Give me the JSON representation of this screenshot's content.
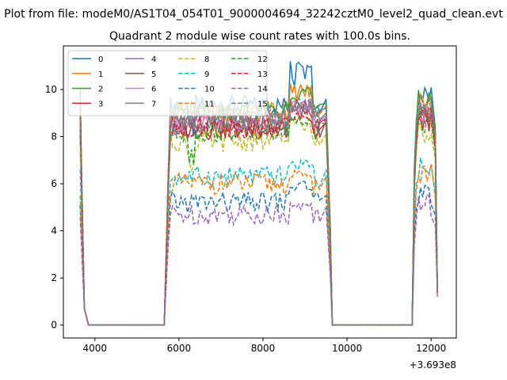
{
  "chart_data": {
    "type": "line",
    "suptitle": "Plot from file: modeM0/AS1T04_054T01_9000004694_32242cztM0_level2_quad_clean.evt",
    "title": "Quadrant 2 module wise count rates with 100.0s bins.",
    "xlabel": "",
    "ylabel": "",
    "x_offset_label": "+3.693e8",
    "xlim": [
      3250,
      12600
    ],
    "ylim": [
      -0.55,
      11.85
    ],
    "x_ticks": [
      4000,
      6000,
      8000,
      10000,
      12000
    ],
    "x_tick_labels": [
      "4000",
      "6000",
      "8000",
      "10000",
      "12000"
    ],
    "y_ticks": [
      0,
      2,
      4,
      6,
      8,
      10
    ],
    "y_tick_labels": [
      "0",
      "2",
      "4",
      "6",
      "8",
      "10"
    ],
    "grid": false,
    "legend_position": "top-left",
    "legend_columns": 4,
    "segments": [
      {
        "start": 3650,
        "end": 3850
      },
      {
        "start": 5650,
        "end": 9650
      },
      {
        "start": 11550,
        "end": 12150
      }
    ],
    "series": [
      {
        "name": "0",
        "color": "#1f77b4",
        "dashed": false,
        "level": 9.3,
        "first": 8.0,
        "peak": 11.2
      },
      {
        "name": "1",
        "color": "#ff7f0e",
        "dashed": false,
        "level": 9.0,
        "first": 8.3,
        "peak": 10.3
      },
      {
        "name": "2",
        "color": "#2ca02c",
        "dashed": false,
        "level": 9.1,
        "first": 10.1,
        "peak": 10.1
      },
      {
        "name": "3",
        "color": "#d62728",
        "dashed": false,
        "level": 8.3,
        "first": 9.0,
        "peak": 9.3
      },
      {
        "name": "4",
        "color": "#9467bd",
        "dashed": false,
        "level": 8.5,
        "first": 8.2,
        "peak": 9.6
      },
      {
        "name": "5",
        "color": "#8c564b",
        "dashed": false,
        "level": 8.4,
        "first": 8.4,
        "peak": 9.6
      },
      {
        "name": "6",
        "color": "#e377c2",
        "dashed": false,
        "level": 8.6,
        "first": 8.5,
        "peak": 9.6
      },
      {
        "name": "7",
        "color": "#7f7f7f",
        "dashed": false,
        "level": 8.7,
        "first": 8.3,
        "peak": 9.4
      },
      {
        "name": "8",
        "color": "#bcbd22",
        "dashed": true,
        "level": 7.8,
        "first": 7.4,
        "peak": 8.8
      },
      {
        "name": "9",
        "color": "#17becf",
        "dashed": true,
        "level": 6.3,
        "first": 6.6,
        "peak": 7.0
      },
      {
        "name": "10",
        "color": "#1f77b4",
        "dashed": true,
        "level": 5.2,
        "first": 5.1,
        "peak": 6.2
      },
      {
        "name": "11",
        "color": "#ff7f0e",
        "dashed": true,
        "level": 6.0,
        "first": 5.5,
        "peak": 6.6
      },
      {
        "name": "12",
        "color": "#2ca02c",
        "dashed": true,
        "level": 8.2,
        "first": 9.3,
        "peak": 8.9
      },
      {
        "name": "13",
        "color": "#d62728",
        "dashed": true,
        "level": 8.4,
        "first": 9.2,
        "peak": 9.0
      },
      {
        "name": "14",
        "color": "#9467bd",
        "dashed": true,
        "level": 4.7,
        "first": 4.6,
        "peak": 5.2
      },
      {
        "name": "15",
        "color": "#7f7f7f",
        "dashed": true,
        "level": 8.9,
        "first": 9.0,
        "peak": 9.7
      }
    ]
  }
}
